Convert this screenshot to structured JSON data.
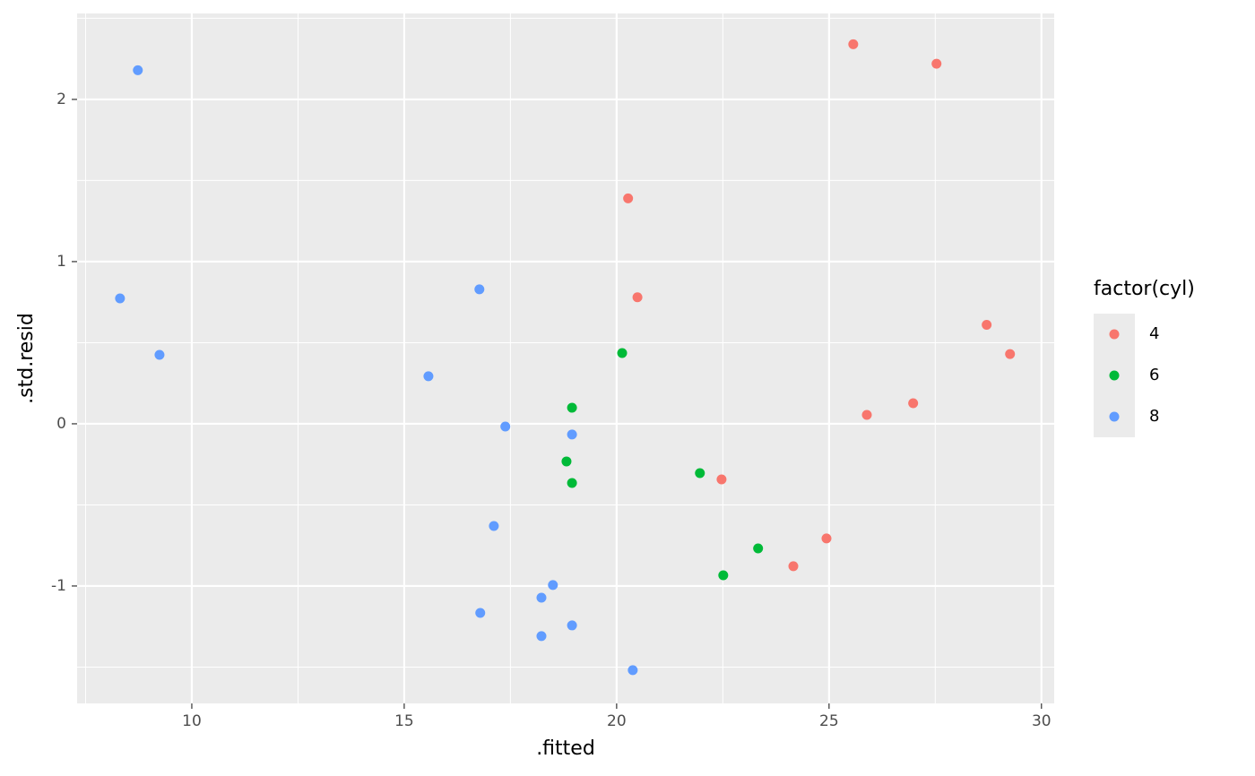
{
  "chart_data": {
    "type": "scatter",
    "x_label": ".fitted",
    "y_label": ".std.resid",
    "legend_title": "factor(cyl)",
    "legend_position": "right",
    "xlim": [
      7.3,
      30.3
    ],
    "ylim": [
      -1.724,
      2.53
    ],
    "xticks": [
      10,
      15,
      20,
      25,
      30
    ],
    "yticks": [
      -1,
      0,
      1,
      2
    ],
    "x_minor_grid": [
      7.5,
      12.5,
      17.5,
      22.5,
      27.5
    ],
    "y_minor_grid": [
      -1.5,
      -0.5,
      0.5,
      1.5,
      2.5
    ],
    "grid": true,
    "series": [
      {
        "name": "4",
        "color": "#F8766D",
        "x": [
          25.57,
          27.53,
          20.27,
          20.49,
          28.71,
          29.26,
          25.89,
          26.98,
          22.47,
          24.94,
          24.16
        ],
        "values": [
          2.34,
          2.22,
          1.39,
          0.78,
          0.61,
          0.43,
          0.055,
          0.127,
          -0.343,
          -0.707,
          -0.878
        ]
      },
      {
        "name": "6",
        "color": "#00BA38",
        "x": [
          20.13,
          18.95,
          18.82,
          18.95,
          21.96,
          23.33,
          22.51
        ],
        "values": [
          0.436,
          0.099,
          -0.232,
          -0.365,
          -0.304,
          -0.768,
          -0.934
        ]
      },
      {
        "name": "8",
        "color": "#619CFF",
        "x": [
          8.73,
          8.31,
          9.24,
          16.77,
          15.57,
          17.38,
          18.95,
          17.11,
          18.5,
          18.23,
          16.79,
          18.95,
          18.23,
          20.38
        ],
        "values": [
          2.18,
          0.773,
          0.425,
          0.829,
          0.293,
          -0.017,
          -0.066,
          -0.63,
          -0.994,
          -1.072,
          -1.166,
          -1.243,
          -1.309,
          -1.519
        ]
      }
    ]
  }
}
